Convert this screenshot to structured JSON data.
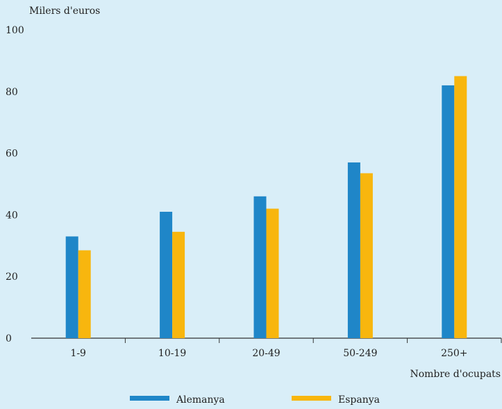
{
  "chart_data": {
    "type": "bar",
    "title": "",
    "ylabel": "Milers d'euros",
    "xlabel": "Nombre d'ocupats",
    "ylim": [
      0,
      100
    ],
    "yticks": [
      0,
      20,
      40,
      60,
      80,
      100
    ],
    "categories": [
      "1-9",
      "10-19",
      "20-49",
      "50-249",
      "250+"
    ],
    "series": [
      {
        "name": "Alemanya",
        "color": "#1f86c8",
        "values": [
          33,
          41,
          46,
          57,
          82
        ]
      },
      {
        "name": "Espanya",
        "color": "#f8b60e",
        "values": [
          28.5,
          34.5,
          42,
          53.5,
          85
        ]
      }
    ],
    "legend_position": "bottom-center",
    "grid": false
  }
}
